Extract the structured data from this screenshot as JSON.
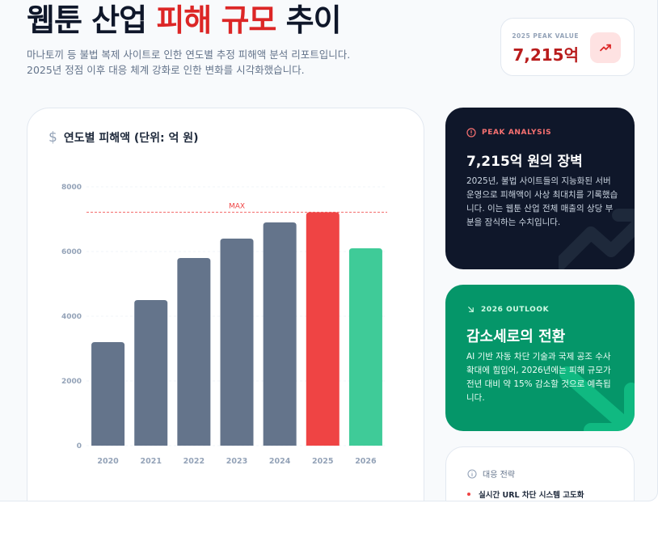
{
  "header": {
    "title_part1": "웹툰 산업",
    "title_accent": "피해 규모",
    "title_part3": "추이",
    "subtitle_line1": "마나토끼 등 불법 복제 사이트로 인한 연도별 추정 피해액 분석 리포트입니다.",
    "subtitle_line2": "2025년 정점 이후 대응 체계 강화로 인한 변화를 시각화했습니다."
  },
  "peak_card": {
    "label": "2025 PEAK VALUE",
    "value": "7,215억",
    "icon": "trending-up-icon"
  },
  "chart_card": {
    "icon": "dollar-icon",
    "title": "연도별 피해액 (단위: 억 원)"
  },
  "chart_data": {
    "type": "bar",
    "categories": [
      "2020",
      "2021",
      "2022",
      "2023",
      "2024",
      "2025",
      "2026"
    ],
    "values": [
      3200,
      4500,
      5800,
      6400,
      6900,
      7215,
      6100
    ],
    "ylim": [
      0,
      8000
    ],
    "yticks": [
      "0",
      "2000",
      "4000",
      "6000",
      "8000"
    ],
    "reference_line": {
      "label": "MAX",
      "value": 7215
    },
    "colors": {
      "default": "#64748b",
      "peak": "#ef4444",
      "forecast": "#3fcb98",
      "reference": "#ef4444"
    },
    "grid": true
  },
  "peak_analysis": {
    "tag": "PEAK ANALYSIS",
    "icon": "alert-circle-icon",
    "title": "7,215억 원의 장벽",
    "body": "2025년, 불법 사이트들의 지능화된 서버 운영으로 피해액이 사상 최대치를 기록했습니다. 이는 웹툰 산업 전체 매출의 상당 부분을 잠식하는 수치입니다."
  },
  "outlook": {
    "tag": "2026 OUTLOOK",
    "icon": "arrow-down-right-icon",
    "title": "감소세로의 전환",
    "body": "AI 기반 자동 차단 기술과 국제 공조 수사 확대에 힘입어, 2026년에는 피해 규모가 전년 대비 약 15% 감소할 것으로 예측됩니다."
  },
  "strategy": {
    "icon": "info-icon",
    "title": "대응 전략",
    "items": [
      "실시간 URL 차단 시스템 고도화"
    ]
  },
  "colors": {
    "accent": "#dc2626",
    "dark_card": "#0f172a",
    "green_card": "#059669"
  }
}
